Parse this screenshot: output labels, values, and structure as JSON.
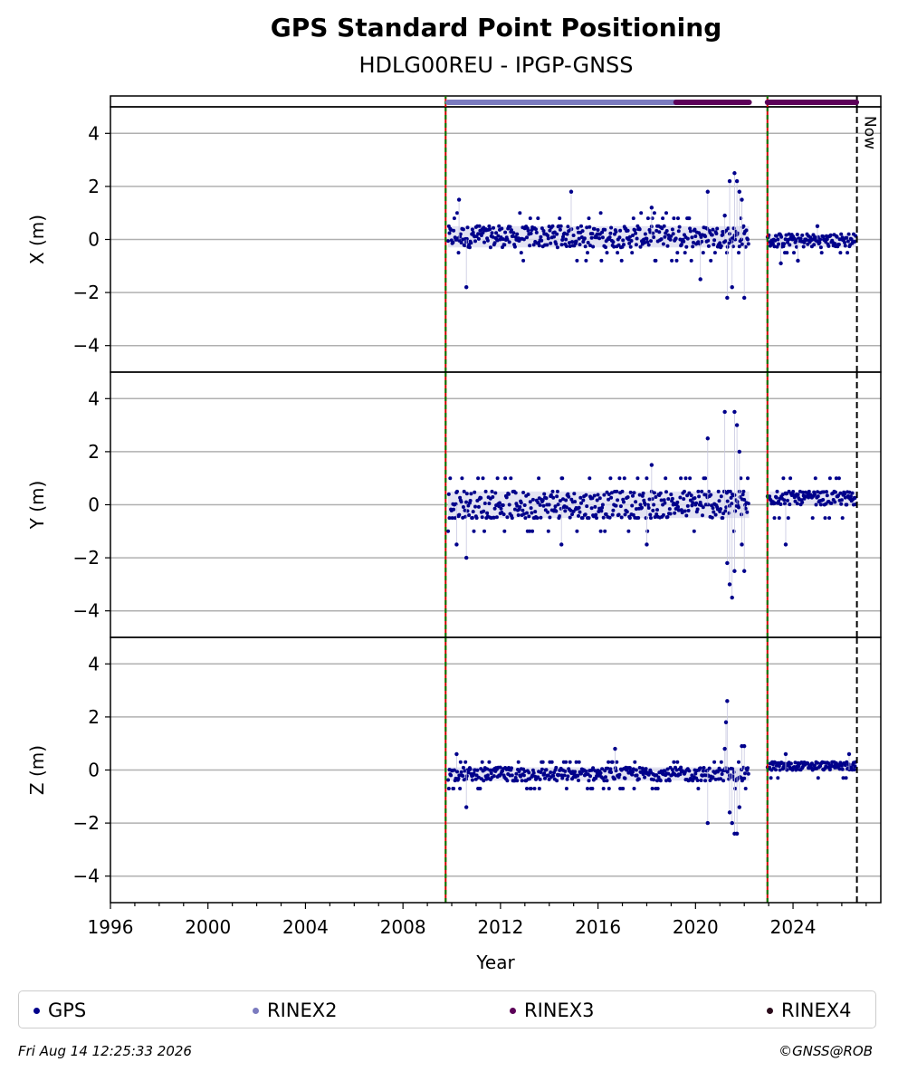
{
  "header": {
    "title": "GPS Standard Point Positioning",
    "subtitle": "HDLG00REU - IPGP-GNSS"
  },
  "footer": {
    "timestamp": "Fri Aug 14 12:25:33 2026",
    "credit": "©GNSS@ROB"
  },
  "legend": [
    {
      "label": "GPS",
      "color": "#00008b"
    },
    {
      "label": "RINEX2",
      "color": "#7b7bbf"
    },
    {
      "label": "RINEX3",
      "color": "#5c0058"
    },
    {
      "label": "RINEX4",
      "color": "#2a0a1a"
    }
  ],
  "chart_data": {
    "type": "scatter",
    "xlabel": "Year",
    "xlim": [
      1996,
      2027.6
    ],
    "x_ticks": [
      "1996",
      "2000",
      "2004",
      "2008",
      "2012",
      "2016",
      "2020",
      "2024"
    ],
    "now_label": "Now",
    "now_year": 2026.62,
    "event_lines": [
      2009.75,
      2022.95
    ],
    "rinex_bars": [
      {
        "name": "RINEX2",
        "start": 2009.85,
        "end": 2019.2,
        "color": "#7b7bbf"
      },
      {
        "name": "RINEX3",
        "start": 2019.2,
        "end": 2022.2,
        "color": "#5c0058"
      },
      {
        "name": "RINEX3",
        "start": 2022.95,
        "end": 2026.6,
        "color": "#5c0058"
      }
    ],
    "panels": [
      {
        "ylabel": "X (m)",
        "ylim": [
          -5,
          5
        ],
        "y_ticks": [
          "−4",
          "−2",
          "0",
          "2",
          "4"
        ],
        "segments": [
          {
            "start": 2009.85,
            "end": 2022.2,
            "band": [
              -0.3,
              0.5
            ],
            "levels": [
              -0.8,
              -0.5,
              0,
              0.2,
              0.5,
              0.8,
              1.0
            ]
          },
          {
            "start": 2022.95,
            "end": 2026.6,
            "band": [
              -0.3,
              0.2
            ],
            "levels": [
              -0.5,
              0,
              0.2
            ]
          }
        ],
        "outliers": [
          [
            2010.6,
            -1.8
          ],
          [
            2010.3,
            1.5
          ],
          [
            2014.9,
            1.8
          ],
          [
            2018.2,
            1.2
          ],
          [
            2020.5,
            1.8
          ],
          [
            2020.2,
            -1.5
          ],
          [
            2021.4,
            2.2
          ],
          [
            2021.6,
            2.5
          ],
          [
            2021.7,
            2.2
          ],
          [
            2021.3,
            -2.2
          ],
          [
            2021.5,
            -1.8
          ],
          [
            2021.8,
            1.8
          ],
          [
            2022.0,
            -2.2
          ],
          [
            2021.9,
            1.5
          ],
          [
            2021.2,
            0.9
          ],
          [
            2023.5,
            -0.9
          ],
          [
            2024.2,
            -0.8
          ],
          [
            2025.0,
            0.5
          ]
        ]
      },
      {
        "ylabel": "Y (m)",
        "ylim": [
          -5,
          5
        ],
        "y_ticks": [
          "−4",
          "−2",
          "0",
          "2",
          "4"
        ],
        "segments": [
          {
            "start": 2009.85,
            "end": 2022.2,
            "band": [
              -0.5,
              0.5
            ],
            "levels": [
              -1.0,
              -0.5,
              0,
              0.5,
              1.0
            ]
          },
          {
            "start": 2022.95,
            "end": 2026.6,
            "band": [
              0,
              0.5
            ],
            "levels": [
              -0.5,
              0,
              0.5,
              1.0
            ]
          }
        ],
        "outliers": [
          [
            2010.6,
            -2.0
          ],
          [
            2010.2,
            -1.5
          ],
          [
            2018.2,
            1.5
          ],
          [
            2018.0,
            -1.5
          ],
          [
            2020.5,
            2.5
          ],
          [
            2021.2,
            3.5
          ],
          [
            2021.6,
            3.5
          ],
          [
            2021.7,
            3.0
          ],
          [
            2021.5,
            -3.5
          ],
          [
            2021.4,
            -3.0
          ],
          [
            2021.6,
            -2.5
          ],
          [
            2021.3,
            -2.2
          ],
          [
            2021.8,
            2.0
          ],
          [
            2022.0,
            -2.5
          ],
          [
            2021.9,
            -1.5
          ],
          [
            2023.7,
            -1.5
          ],
          [
            2014.5,
            -1.5
          ]
        ]
      },
      {
        "ylabel": "Z (m)",
        "ylim": [
          -5,
          5
        ],
        "y_ticks": [
          "−4",
          "−2",
          "0",
          "2",
          "4"
        ],
        "segments": [
          {
            "start": 2009.85,
            "end": 2022.2,
            "band": [
              -0.4,
              0.1
            ],
            "levels": [
              -0.7,
              -0.4,
              -0.2,
              0,
              0.3
            ]
          },
          {
            "start": 2022.95,
            "end": 2026.6,
            "band": [
              0,
              0.3
            ],
            "levels": [
              -0.3,
              0,
              0.3
            ]
          }
        ],
        "outliers": [
          [
            2010.6,
            -1.4
          ],
          [
            2010.2,
            0.6
          ],
          [
            2016.7,
            0.8
          ],
          [
            2020.5,
            -2.0
          ],
          [
            2021.3,
            2.6
          ],
          [
            2021.25,
            1.8
          ],
          [
            2021.6,
            -2.4
          ],
          [
            2021.7,
            -2.4
          ],
          [
            2021.5,
            -2.0
          ],
          [
            2021.4,
            -1.6
          ],
          [
            2021.8,
            -1.4
          ],
          [
            2021.9,
            0.9
          ],
          [
            2022.0,
            0.9
          ],
          [
            2021.2,
            0.8
          ],
          [
            2023.7,
            0.6
          ],
          [
            2026.3,
            0.6
          ]
        ]
      }
    ]
  }
}
